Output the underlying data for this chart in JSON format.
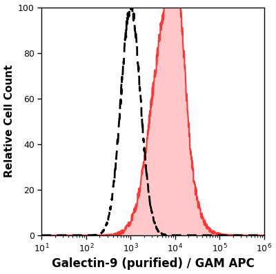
{
  "title": "",
  "xlabel": "Galectin-9 (purified) / GAM APC",
  "ylabel": "Relative Cell Count",
  "xlim": [
    10,
    1000000
  ],
  "ylim": [
    0,
    100
  ],
  "background_color": "#ffffff",
  "dashed_color": "#000000",
  "filled_color": "#ff2222",
  "filled_face_color": "#ff9999",
  "filled_alpha": 0.55,
  "dashed_peak_log": 3.0,
  "filled_peak_log": 3.82,
  "dashed_sigma": 0.22,
  "filled_sigma": 0.35,
  "dashed_peak_height": 100,
  "filled_peak_height": 97,
  "xlabel_fontsize": 12,
  "ylabel_fontsize": 11,
  "tick_fontsize": 9,
  "linewidth": 1.5,
  "dashed_linewidth": 2.0
}
